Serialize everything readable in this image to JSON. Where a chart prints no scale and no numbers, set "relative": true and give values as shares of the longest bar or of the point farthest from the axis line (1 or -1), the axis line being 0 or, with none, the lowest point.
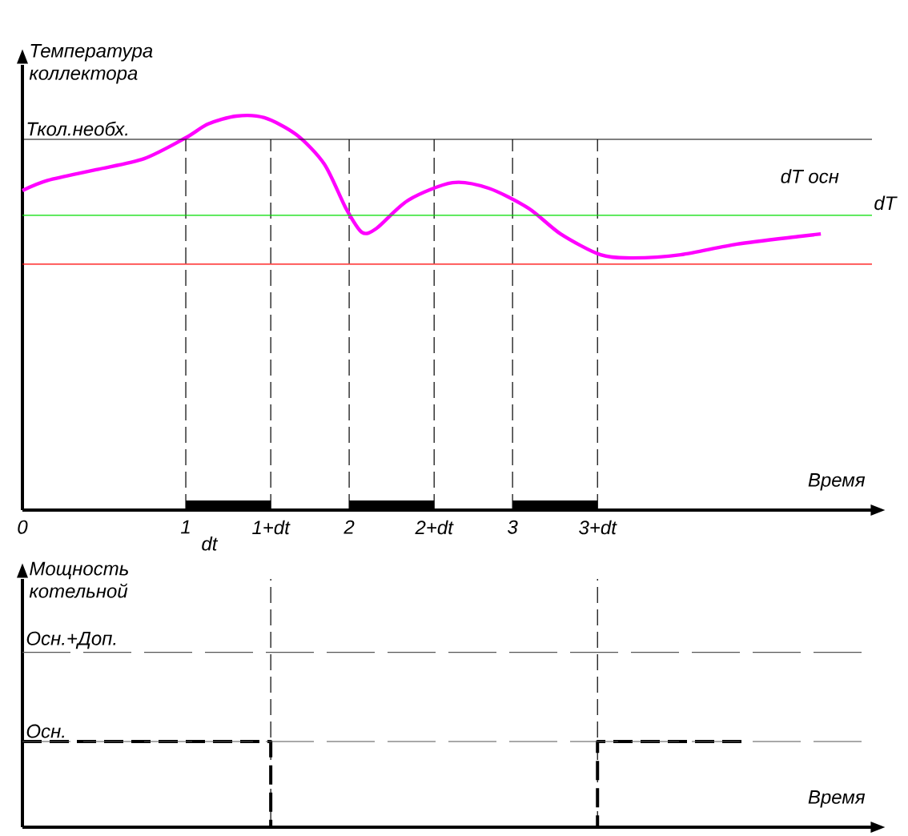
{
  "chart_data": [
    {
      "type": "line",
      "relative": true,
      "ylabel": "Температура коллектора",
      "xlabel": "Время",
      "series": [
        {
          "color": "#ff00ff",
          "x": [
            0,
            0.157,
            0.451,
            0.745,
            1.0,
            1.137,
            1.309,
            1.48,
            1.676,
            1.848,
            1.98,
            2.078,
            2.167,
            2.363,
            2.632,
            2.853,
            3.098,
            3.294,
            3.539,
            3.735,
            4.029,
            4.373,
            4.765,
            4.887
          ],
          "values": [
            0.811,
            0.837,
            0.864,
            0.892,
            0.945,
            0.98,
            1.0,
            0.996,
            0.953,
            0.878,
            0.766,
            0.705,
            0.715,
            0.787,
            0.831,
            0.817,
            0.766,
            0.701,
            0.648,
            0.64,
            0.648,
            0.675,
            0.695,
            0.701
          ]
        },
        {
          "color": "#000000",
          "x": [
            1,
            1.52,
            1.76,
            2,
            2.52,
            2.76,
            3,
            3.52
          ],
          "values": [
            0.012,
            0.012,
            null,
            0.012,
            0.012,
            null,
            0.012,
            0.012
          ]
        }
      ],
      "xlim": [
        0,
        5.2
      ],
      "xticks": [
        0,
        1,
        {
          "value": 1.52,
          "label": "1+dt"
        },
        2,
        {
          "value": 2.52,
          "label": "2+dt"
        },
        3,
        {
          "value": 3.52,
          "label": "3+dt"
        }
      ],
      "ref_lines": [
        {
          "axis": "y",
          "value": 0.941,
          "label": "Ткол.необх.",
          "color": "#000000"
        },
        {
          "axis": "y",
          "value": 0.748,
          "color": "#00dd00"
        },
        {
          "axis": "y",
          "value": 0.624,
          "color": "#ff0000"
        },
        {
          "axis": "x",
          "value": 1,
          "line_style": "dashed"
        },
        {
          "axis": "x",
          "value": 1.52,
          "line_style": "dashed"
        },
        {
          "axis": "x",
          "value": 2,
          "line_style": "dashed"
        },
        {
          "axis": "x",
          "value": 2.52,
          "line_style": "dashed"
        },
        {
          "axis": "x",
          "value": 3,
          "line_style": "dashed"
        },
        {
          "axis": "x",
          "value": 3.52,
          "line_style": "dashed"
        }
      ],
      "annotations": [
        "dt",
        "dT осн",
        "dT"
      ]
    },
    {
      "type": "step",
      "ylabel": "Мощность котельной",
      "xlabel": "Время",
      "color": "#000000",
      "line_style": "dashed",
      "x": [
        0,
        1.52,
        3.52,
        4.45
      ],
      "values": [
        1,
        0,
        1,
        1
      ],
      "xlim": [
        0,
        5.2
      ],
      "relative": true,
      "ref_lines": [
        {
          "axis": "y",
          "value": 1,
          "label": "Осн.",
          "line_style": "dashed",
          "color": "#555555"
        },
        {
          "axis": "y",
          "value": 2.04,
          "label": "Осн.+Доп.",
          "line_style": "dashed",
          "color": "#555555"
        },
        {
          "axis": "x",
          "value": 1.52,
          "line_style": "dashed"
        },
        {
          "axis": "x",
          "value": 3.52,
          "line_style": "dashed"
        }
      ]
    }
  ]
}
